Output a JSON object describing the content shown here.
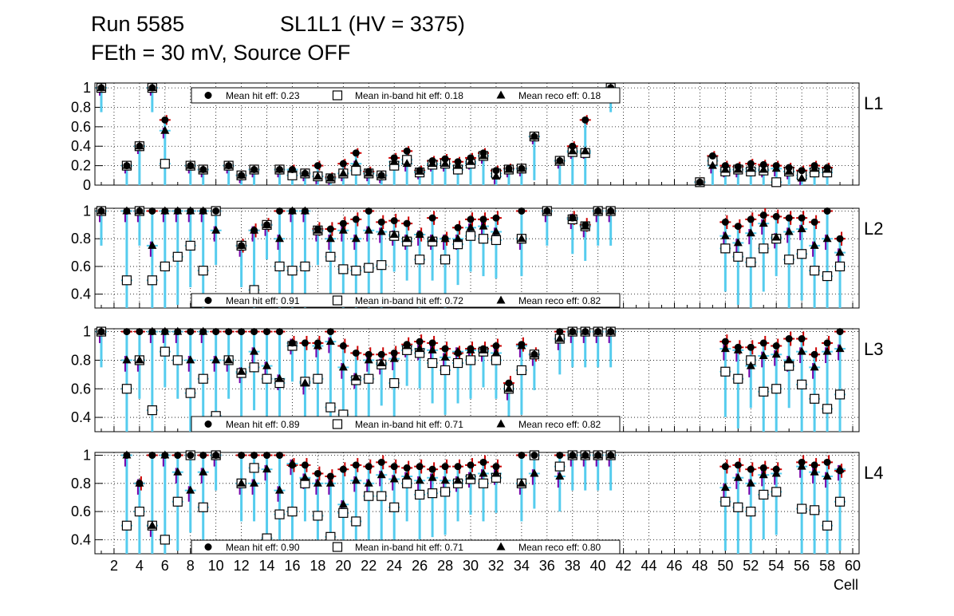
{
  "header": {
    "run": "Run 5585",
    "chamber": "SL1L1 (HV = 3375)",
    "config": "FEth = 30 mV, Source OFF"
  },
  "colors": {
    "hit": "#000000",
    "hit_err": "#cc0000",
    "inband": "#55ccee",
    "inband_fill": "#ffffff",
    "reco": "#7700aa"
  },
  "chart_data": [
    {
      "type": "scatter",
      "name": "L1",
      "ylim": [
        0,
        1.05
      ],
      "yticks": [
        0,
        0.2,
        0.4,
        0.6,
        0.8,
        1
      ],
      "ytick_labels": [
        "0",
        "0.2",
        "0.4",
        "0.6",
        "0.8",
        "1"
      ],
      "xlim": [
        0.5,
        60.5
      ],
      "legend": {
        "hit": "Mean hit  eff: 0.23",
        "inband": "Mean in-band hit eff: 0.18",
        "reco": "Mean reco eff: 0.18"
      },
      "cells": [
        1,
        3,
        4,
        5,
        6,
        8,
        9,
        11,
        12,
        13,
        15,
        16,
        17,
        18,
        19,
        20,
        21,
        22,
        23,
        24,
        25,
        26,
        27,
        28,
        29,
        30,
        31,
        32,
        33,
        34,
        35,
        37,
        38,
        39,
        41,
        48,
        49,
        50,
        51,
        52,
        53,
        54,
        55,
        56,
        57,
        58
      ],
      "series": [
        {
          "name": "hit",
          "values": [
            1,
            0.2,
            0.4,
            1,
            0.67,
            0.2,
            0.16,
            0.2,
            0.1,
            0.16,
            0.16,
            0.16,
            0.12,
            0.2,
            0.08,
            0.22,
            0.33,
            0.14,
            0.1,
            0.28,
            0.35,
            0.15,
            0.25,
            0.27,
            0.24,
            0.28,
            0.33,
            0.15,
            0.17,
            0.17,
            0.5,
            0.25,
            0.4,
            0.67,
            1,
            0.03,
            0.3,
            0.2,
            0.19,
            0.22,
            0.21,
            0.2,
            0.18,
            0.15,
            0.2,
            0.18
          ]
        },
        {
          "name": "inband",
          "values": [
            1,
            0.2,
            0.4,
            1,
            0.22,
            0.2,
            0.16,
            0.2,
            0.1,
            0.16,
            0.16,
            0.1,
            0.12,
            0.09,
            0.07,
            0.12,
            0.15,
            0.12,
            0.1,
            0.2,
            0.26,
            0.13,
            0.21,
            0.22,
            0.16,
            0.22,
            0.3,
            0.12,
            0.16,
            0.17,
            0.5,
            0.25,
            0.34,
            0.33,
            1,
            0.03,
            0.25,
            0.14,
            0.16,
            0.14,
            0.15,
            0.03,
            0.14,
            0.1,
            0.13,
            0.13
          ]
        },
        {
          "name": "reco",
          "values": [
            1,
            0.2,
            0.4,
            1,
            0.56,
            0.2,
            0.16,
            0.2,
            0.1,
            0.16,
            0.16,
            0.16,
            0.12,
            0.09,
            0.07,
            0.12,
            0.22,
            0.12,
            0.1,
            0.24,
            0.22,
            0.14,
            0.22,
            0.22,
            0.2,
            0.24,
            0.3,
            0.09,
            0.16,
            0.17,
            0.5,
            0.25,
            0.35,
            0.35,
            1,
            0.03,
            0.2,
            0.16,
            0.16,
            0.17,
            0.16,
            0.17,
            0.14,
            0.07,
            0.17,
            0.16
          ]
        }
      ]
    },
    {
      "type": "scatter",
      "name": "L2",
      "ylim": [
        0.3,
        1.02
      ],
      "yticks": [
        0.4,
        0.6,
        0.8,
        1
      ],
      "ytick_labels": [
        "0.4",
        "0.6",
        "0.8",
        "1"
      ],
      "xlim": [
        0.5,
        60.5
      ],
      "legend": {
        "hit": "Mean hit  eff: 0.91",
        "inband": "Mean in-band hit eff: 0.72",
        "reco": "Mean reco eff: 0.82"
      },
      "cells": [
        1,
        3,
        4,
        5,
        6,
        7,
        8,
        9,
        10,
        12,
        13,
        14,
        15,
        16,
        17,
        18,
        19,
        20,
        21,
        22,
        23,
        24,
        25,
        26,
        27,
        28,
        29,
        30,
        31,
        32,
        34,
        36,
        38,
        39,
        40,
        41,
        50,
        51,
        52,
        53,
        54,
        55,
        56,
        57,
        58,
        59
      ],
      "series": [
        {
          "name": "hit",
          "values": [
            1,
            1,
            1,
            1,
            1,
            1,
            1,
            1,
            1,
            0.75,
            0.86,
            0.9,
            1,
            1,
            1,
            0.87,
            0.87,
            0.91,
            0.94,
            1,
            0.92,
            0.93,
            0.91,
            0.83,
            0.95,
            0.8,
            0.88,
            0.94,
            0.94,
            0.95,
            1,
            1,
            0.95,
            0.9,
            1,
            1,
            0.92,
            0.89,
            0.94,
            0.97,
            0.96,
            0.95,
            0.95,
            0.92,
            1,
            0.8
          ]
        },
        {
          "name": "inband",
          "values": [
            1,
            0.5,
            1,
            0.5,
            0.6,
            0.67,
            0.75,
            0.57,
            1,
            0.75,
            0.43,
            0.9,
            0.6,
            0.57,
            0.6,
            0.86,
            0.67,
            0.58,
            0.57,
            0.59,
            0.61,
            0.82,
            0.78,
            0.65,
            0.78,
            0.65,
            0.76,
            0.82,
            0.8,
            0.79,
            0.8,
            1,
            0.94,
            0.89,
            1,
            1,
            0.73,
            0.67,
            0.63,
            0.73,
            0.8,
            0.65,
            0.69,
            0.57,
            0.53,
            0.6
          ]
        },
        {
          "name": "reco",
          "values": [
            1,
            1,
            1,
            0.75,
            1,
            1,
            1,
            1,
            0.86,
            0.75,
            0.86,
            0.9,
            0.8,
            1,
            1,
            0.86,
            0.8,
            0.86,
            0.8,
            0.86,
            0.85,
            0.83,
            0.8,
            0.83,
            0.8,
            0.8,
            0.8,
            0.88,
            0.89,
            0.85,
            0.8,
            1,
            0.95,
            0.89,
            1,
            1,
            0.82,
            0.77,
            0.84,
            0.91,
            0.81,
            0.85,
            0.87,
            0.75,
            0.8,
            0.7
          ]
        }
      ]
    },
    {
      "type": "scatter",
      "name": "L3",
      "ylim": [
        0.3,
        1.02
      ],
      "yticks": [
        0.4,
        0.6,
        0.8,
        1
      ],
      "ytick_labels": [
        "0.4",
        "0.6",
        "0.8",
        "1"
      ],
      "xlim": [
        0.5,
        60.5
      ],
      "legend": {
        "hit": "Mean hit  eff: 0.89",
        "inband": "Mean in-band hit eff: 0.71",
        "reco": "Mean reco eff: 0.82"
      },
      "cells": [
        1,
        3,
        4,
        5,
        6,
        7,
        8,
        9,
        10,
        11,
        12,
        13,
        14,
        15,
        16,
        17,
        18,
        19,
        20,
        21,
        22,
        23,
        24,
        25,
        26,
        27,
        28,
        29,
        30,
        31,
        32,
        33,
        34,
        35,
        37,
        38,
        39,
        40,
        41,
        50,
        51,
        52,
        53,
        54,
        55,
        56,
        57,
        58,
        59
      ],
      "series": [
        {
          "name": "hit",
          "values": [
            1,
            1,
            1,
            1,
            1,
            1,
            1,
            1,
            1,
            1,
            1,
            1,
            1,
            1,
            0.92,
            0.92,
            0.92,
            1,
            0.9,
            0.85,
            0.84,
            0.84,
            0.85,
            0.91,
            0.93,
            0.92,
            0.88,
            0.85,
            0.88,
            0.88,
            0.9,
            0.64,
            0.91,
            0.84,
            1,
            1,
            1,
            1,
            1,
            0.93,
            0.89,
            0.89,
            0.92,
            0.9,
            0.95,
            0.95,
            0.84,
            0.92,
            1
          ]
        },
        {
          "name": "inband",
          "values": [
            1,
            0.6,
            0.8,
            0.45,
            0.86,
            0.8,
            0.57,
            0.67,
            0.41,
            0.8,
            0.71,
            0.75,
            0.67,
            0.64,
            0.9,
            0.65,
            0.67,
            0.47,
            0.42,
            0.66,
            0.67,
            0.77,
            0.64,
            0.87,
            0.85,
            0.78,
            0.73,
            0.78,
            0.8,
            0.86,
            0.8,
            0.6,
            0.73,
            0.84,
            0.95,
            1,
            1,
            1,
            1,
            0.72,
            0.67,
            0.8,
            0.58,
            0.6,
            0.76,
            0.63,
            0.53,
            0.46,
            0.56
          ]
        },
        {
          "name": "reco",
          "values": [
            1,
            0.8,
            0.8,
            1,
            1,
            1,
            0.8,
            1,
            0.8,
            0.8,
            0.72,
            0.86,
            0.76,
            0.67,
            0.92,
            0.64,
            0.9,
            0.93,
            0.75,
            0.68,
            0.8,
            0.78,
            0.81,
            0.9,
            0.88,
            0.87,
            0.82,
            0.86,
            0.87,
            0.87,
            0.85,
            0.6,
            0.9,
            0.84,
            0.95,
            1,
            1,
            1,
            1,
            0.88,
            0.87,
            0.76,
            0.83,
            0.84,
            0.8,
            0.86,
            0.75,
            0.86,
            0.88
          ]
        }
      ]
    },
    {
      "type": "scatter",
      "name": "L4",
      "ylim": [
        0.3,
        1.02
      ],
      "yticks": [
        0.4,
        0.6,
        0.8,
        1
      ],
      "ytick_labels": [
        "0.4",
        "0.6",
        "0.8",
        "1"
      ],
      "xlim": [
        0.5,
        60.5
      ],
      "legend": {
        "hit": "Mean hit  eff: 0.90",
        "inband": "Mean in-band hit eff: 0.71",
        "reco": "Mean reco eff: 0.80"
      },
      "cells": [
        3,
        4,
        5,
        6,
        7,
        8,
        9,
        10,
        12,
        13,
        14,
        15,
        16,
        17,
        18,
        19,
        20,
        21,
        22,
        23,
        24,
        25,
        26,
        27,
        28,
        29,
        30,
        31,
        32,
        34,
        35,
        37,
        38,
        39,
        40,
        41,
        50,
        51,
        52,
        53,
        54,
        56,
        57,
        58,
        59
      ],
      "series": [
        {
          "name": "hit",
          "values": [
            1,
            0.8,
            1,
            1,
            1,
            1,
            1,
            1,
            1,
            1,
            1,
            1,
            0.93,
            0.93,
            0.87,
            0.85,
            0.9,
            0.93,
            0.92,
            0.95,
            0.92,
            0.91,
            0.92,
            0.9,
            0.92,
            0.92,
            0.93,
            0.95,
            0.92,
            1,
            1,
            1,
            1,
            1,
            1,
            1,
            0.92,
            0.93,
            0.9,
            0.91,
            0.9,
            0.95,
            0.93,
            0.95,
            0.89
          ]
        },
        {
          "name": "inband",
          "values": [
            0.5,
            0.6,
            0.5,
            0.4,
            0.67,
            1,
            0.63,
            1,
            0.8,
            0.91,
            0.41,
            0.58,
            0.6,
            0.8,
            0.57,
            0.42,
            0.59,
            0.53,
            0.71,
            0.71,
            0.63,
            0.8,
            0.72,
            0.73,
            0.74,
            0.8,
            0.83,
            0.8,
            0.84,
            0.8,
            1,
            0.92,
            1,
            1,
            1,
            1,
            0.67,
            0.63,
            0.6,
            0.72,
            0.74,
            0.62,
            0.61,
            0.5,
            0.67
          ]
        },
        {
          "name": "reco",
          "values": [
            1,
            0.8,
            0.5,
            1,
            0.88,
            0.75,
            0.88,
            1,
            0.8,
            0.8,
            0.9,
            0.75,
            0.94,
            0.84,
            0.8,
            0.8,
            0.65,
            0.82,
            0.8,
            0.86,
            0.83,
            0.85,
            0.82,
            0.84,
            0.82,
            0.82,
            0.85,
            0.87,
            0.87,
            0.8,
            0.87,
            0.85,
            1,
            1,
            1,
            1,
            0.77,
            0.84,
            0.8,
            0.86,
            0.87,
            0.92,
            0.88,
            0.85,
            0.9
          ]
        }
      ]
    }
  ],
  "xaxis": {
    "label": "Cell",
    "ticks": [
      "2",
      "4",
      "6",
      "8",
      "10",
      "12",
      "14",
      "16",
      "18",
      "20",
      "22",
      "24",
      "26",
      "28",
      "30",
      "32",
      "34",
      "36",
      "38",
      "40",
      "42",
      "44",
      "46",
      "48",
      "50",
      "52",
      "54",
      "56",
      "58",
      "60"
    ]
  }
}
